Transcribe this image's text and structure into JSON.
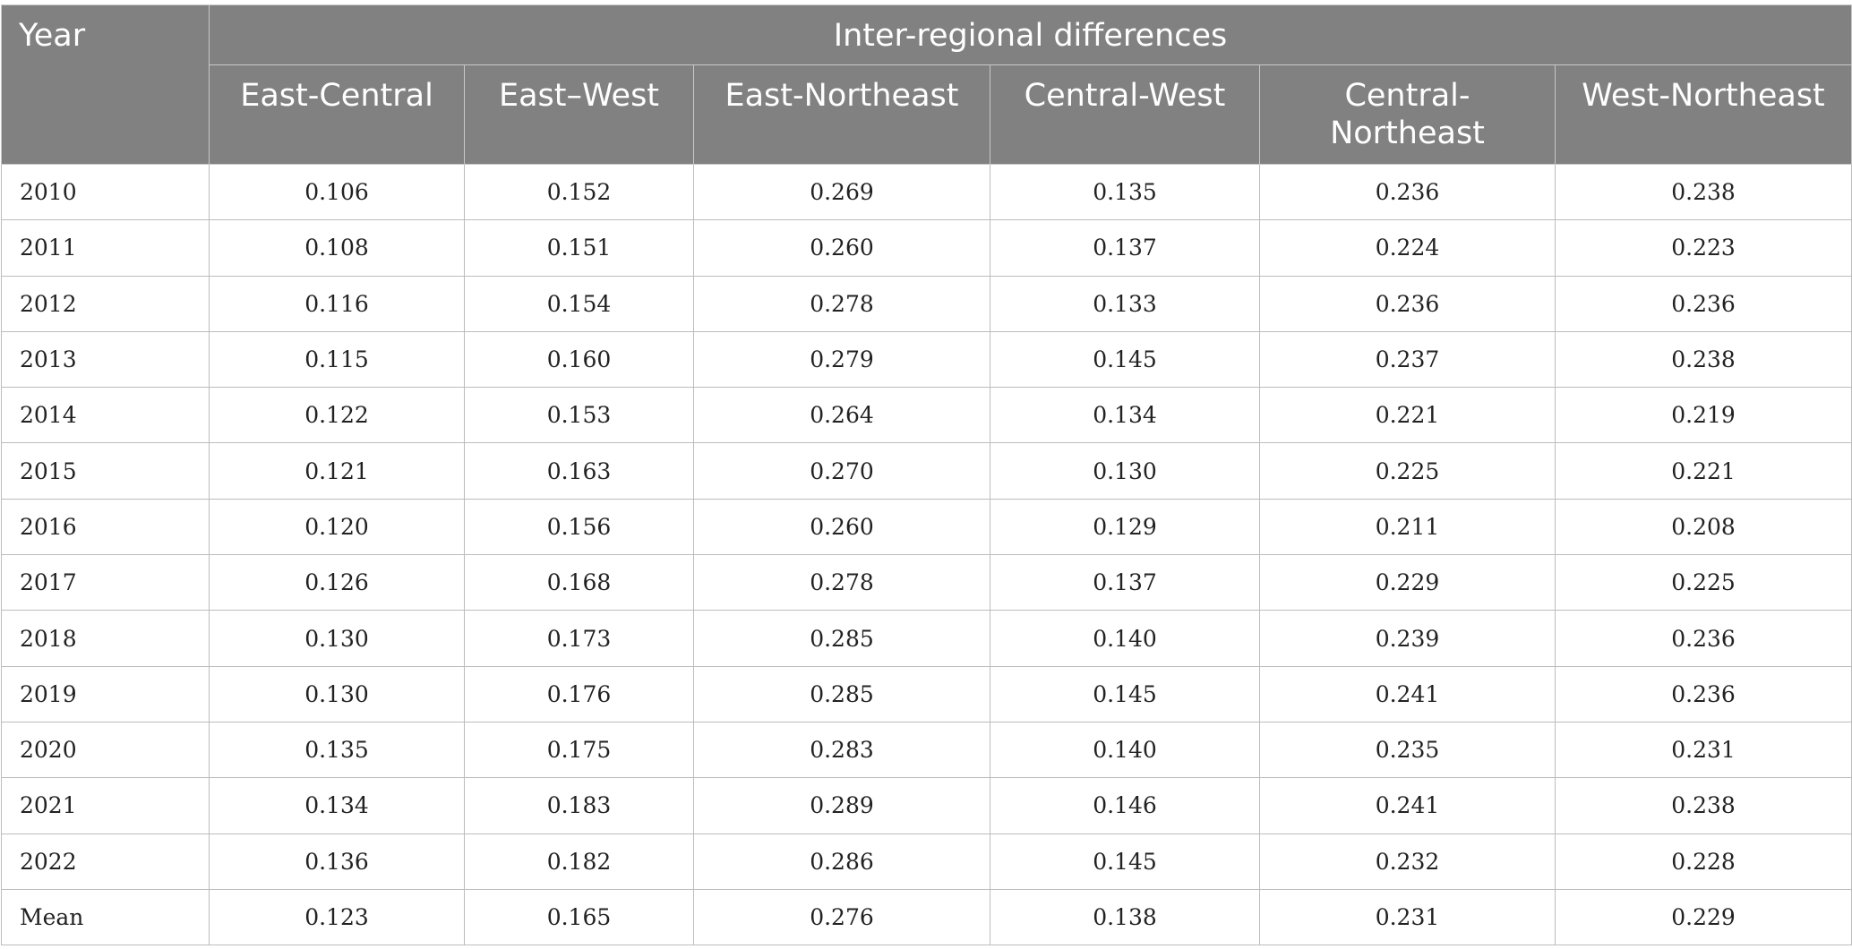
{
  "table": {
    "year_header": "Year",
    "group_header": "Inter-regional differences",
    "columns": [
      "East-Central",
      "East–West",
      "East-Northeast",
      "Central-West",
      "Central-\nNortheast",
      "West-Northeast"
    ],
    "rows": [
      {
        "year": "2010",
        "values": [
          "0.106",
          "0.152",
          "0.269",
          "0.135",
          "0.236",
          "0.238"
        ]
      },
      {
        "year": "2011",
        "values": [
          "0.108",
          "0.151",
          "0.260",
          "0.137",
          "0.224",
          "0.223"
        ]
      },
      {
        "year": "2012",
        "values": [
          "0.116",
          "0.154",
          "0.278",
          "0.133",
          "0.236",
          "0.236"
        ]
      },
      {
        "year": "2013",
        "values": [
          "0.115",
          "0.160",
          "0.279",
          "0.145",
          "0.237",
          "0.238"
        ]
      },
      {
        "year": "2014",
        "values": [
          "0.122",
          "0.153",
          "0.264",
          "0.134",
          "0.221",
          "0.219"
        ]
      },
      {
        "year": "2015",
        "values": [
          "0.121",
          "0.163",
          "0.270",
          "0.130",
          "0.225",
          "0.221"
        ]
      },
      {
        "year": "2016",
        "values": [
          "0.120",
          "0.156",
          "0.260",
          "0.129",
          "0.211",
          "0.208"
        ]
      },
      {
        "year": "2017",
        "values": [
          "0.126",
          "0.168",
          "0.278",
          "0.137",
          "0.229",
          "0.225"
        ]
      },
      {
        "year": "2018",
        "values": [
          "0.130",
          "0.173",
          "0.285",
          "0.140",
          "0.239",
          "0.236"
        ]
      },
      {
        "year": "2019",
        "values": [
          "0.130",
          "0.176",
          "0.285",
          "0.145",
          "0.241",
          "0.236"
        ]
      },
      {
        "year": "2020",
        "values": [
          "0.135",
          "0.175",
          "0.283",
          "0.140",
          "0.235",
          "0.231"
        ]
      },
      {
        "year": "2021",
        "values": [
          "0.134",
          "0.183",
          "0.289",
          "0.146",
          "0.241",
          "0.238"
        ]
      },
      {
        "year": "2022",
        "values": [
          "0.136",
          "0.182",
          "0.286",
          "0.145",
          "0.232",
          "0.228"
        ]
      },
      {
        "year": "Mean",
        "values": [
          "0.123",
          "0.165",
          "0.276",
          "0.138",
          "0.231",
          "0.229"
        ]
      }
    ]
  },
  "colors": {
    "header_background": "#808180",
    "header_text": "#ffffff",
    "grid_line": "#bcbcbc"
  }
}
